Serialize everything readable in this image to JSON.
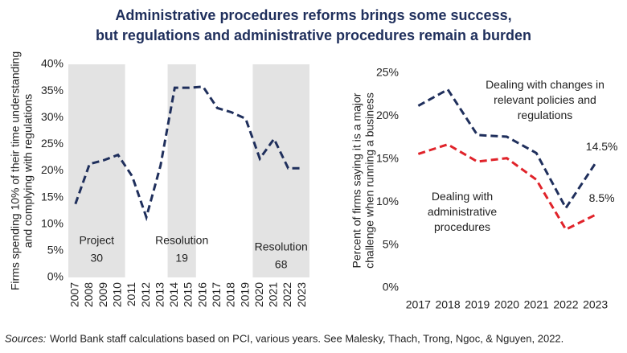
{
  "title": {
    "lines": [
      "Administrative procedures reforms brings some success,",
      "but regulations and administrative procedures remain a burden"
    ]
  },
  "source": {
    "label": "Sources:",
    "text": "World Bank staff calculations based on PCI, various years. See Malesky, Thach, Trong, Ngoc, & Nguyen, 2022."
  },
  "chart_data": [
    {
      "type": "line",
      "y_label": {
        "lines": [
          "Firms spending 10% of their time understanding",
          "and complying with regulations"
        ]
      },
      "categories": [
        "2007",
        "2008",
        "2009",
        "2010",
        "2011",
        "2012",
        "2013",
        "2014",
        "2015",
        "2016",
        "2017",
        "2018",
        "2019",
        "2020",
        "2021",
        "2022",
        "2023"
      ],
      "series": [
        {
          "color": "#1f2f5c",
          "values": [
            13.8,
            21.3,
            22.0,
            23.0,
            19.0,
            11.3,
            21.0,
            35.6,
            35.6,
            35.8,
            31.8,
            31.0,
            29.8,
            22.3,
            26.0,
            20.5,
            20.5
          ]
        }
      ],
      "ylim": [
        0,
        40
      ],
      "yticks": [
        {
          "value": 0,
          "label": "0%"
        },
        {
          "value": 5,
          "label": "5%"
        },
        {
          "value": 10,
          "label": "10%"
        },
        {
          "value": 15,
          "label": "15%"
        },
        {
          "value": 20,
          "label": "20%"
        },
        {
          "value": 25,
          "label": "25%"
        },
        {
          "value": 30,
          "label": "30%"
        },
        {
          "value": 35,
          "label": "35%"
        },
        {
          "value": 40,
          "label": "40%"
        }
      ],
      "shaded_periods": [
        {
          "start": "2007",
          "end": "2010",
          "lines": [
            "Project",
            "30"
          ]
        },
        {
          "start": "2014",
          "end": "2015",
          "lines": [
            "Resolution",
            "19"
          ]
        },
        {
          "start": "2020",
          "end": "2023",
          "lines": [
            "Resolution",
            "68"
          ]
        }
      ],
      "shade_color": "#e3e3e3"
    },
    {
      "type": "line",
      "y_label": {
        "lines": [
          "Percent of firms saying it is a major",
          "challenge when running a business"
        ]
      },
      "categories": [
        "2017",
        "2018",
        "2019",
        "2020",
        "2021",
        "2022",
        "2023"
      ],
      "series": [
        {
          "name": "Dealing with changes in relevant policies and regulations",
          "color": "#1f2f5c",
          "values": [
            21.2,
            23.1,
            17.8,
            17.6,
            15.7,
            9.3,
            14.5
          ],
          "value_labels": [
            null,
            null,
            null,
            null,
            null,
            null,
            "14.5%"
          ]
        },
        {
          "name": "Dealing with administrative procedures",
          "color": "#e0232a",
          "values": [
            15.6,
            16.7,
            14.7,
            15.1,
            12.6,
            6.8,
            8.5
          ],
          "value_labels": [
            null,
            null,
            null,
            null,
            null,
            null,
            "8.5%"
          ]
        }
      ],
      "ylim": [
        0,
        25
      ],
      "yticks": [
        {
          "value": 0,
          "label": "0%"
        },
        {
          "value": 5,
          "label": "5%"
        },
        {
          "value": 10,
          "label": "10%"
        },
        {
          "value": 15,
          "label": "15%"
        },
        {
          "value": 20,
          "label": "20%"
        },
        {
          "value": 25,
          "label": "25%"
        }
      ]
    }
  ]
}
